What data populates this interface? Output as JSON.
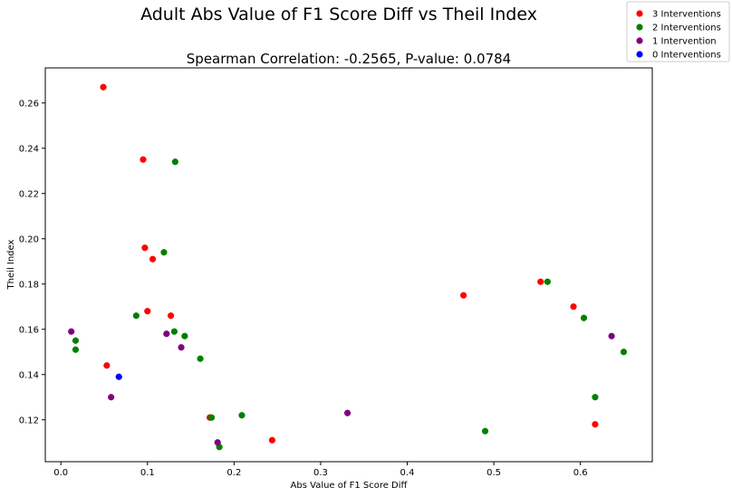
{
  "chart_data": {
    "type": "scatter",
    "title": "Adult Abs Value of F1 Score Diff vs Theil Index",
    "subtitle": "Spearman Correlation: -0.2565, P-value: 0.0784",
    "xlabel": "Abs Value of F1 Score Diff",
    "ylabel": "Theil Index",
    "xlim": [
      -0.018,
      0.683
    ],
    "ylim": [
      0.1015,
      0.2755
    ],
    "xticks": [
      0.0,
      0.1,
      0.2,
      0.3,
      0.4,
      0.5,
      0.6
    ],
    "xtick_labels": [
      "0.0",
      "0.1",
      "0.2",
      "0.3",
      "0.4",
      "0.5",
      "0.6"
    ],
    "yticks": [
      0.12,
      0.14,
      0.16,
      0.18,
      0.2,
      0.22,
      0.24,
      0.26
    ],
    "ytick_labels": [
      "0.12",
      "0.14",
      "0.16",
      "0.18",
      "0.20",
      "0.22",
      "0.24",
      "0.26"
    ],
    "grid": false,
    "legend_position": "top-right (outside plot)",
    "series": [
      {
        "name": "3 Interventions",
        "color": "#ff0000",
        "points": [
          [
            0.049,
            0.267
          ],
          [
            0.095,
            0.235
          ],
          [
            0.097,
            0.196
          ],
          [
            0.106,
            0.191
          ],
          [
            0.1,
            0.168
          ],
          [
            0.127,
            0.166
          ],
          [
            0.053,
            0.144
          ],
          [
            0.172,
            0.121
          ],
          [
            0.244,
            0.111
          ],
          [
            0.465,
            0.175
          ],
          [
            0.554,
            0.181
          ],
          [
            0.592,
            0.17
          ],
          [
            0.617,
            0.118
          ]
        ]
      },
      {
        "name": "2 Interventions",
        "color": "#008000",
        "points": [
          [
            0.132,
            0.234
          ],
          [
            0.119,
            0.194
          ],
          [
            0.087,
            0.166
          ],
          [
            0.017,
            0.155
          ],
          [
            0.017,
            0.151
          ],
          [
            0.131,
            0.159
          ],
          [
            0.143,
            0.157
          ],
          [
            0.161,
            0.147
          ],
          [
            0.174,
            0.121
          ],
          [
            0.209,
            0.122
          ],
          [
            0.183,
            0.108
          ],
          [
            0.49,
            0.115
          ],
          [
            0.562,
            0.181
          ],
          [
            0.604,
            0.165
          ],
          [
            0.617,
            0.13
          ],
          [
            0.65,
            0.15
          ]
        ]
      },
      {
        "name": "1 Intervention",
        "color": "#800080",
        "points": [
          [
            0.012,
            0.159
          ],
          [
            0.122,
            0.158
          ],
          [
            0.139,
            0.152
          ],
          [
            0.058,
            0.13
          ],
          [
            0.181,
            0.11
          ],
          [
            0.331,
            0.123
          ],
          [
            0.636,
            0.157
          ]
        ]
      },
      {
        "name": "0 Interventions",
        "color": "#0000ff",
        "points": [
          [
            0.067,
            0.139
          ]
        ]
      }
    ]
  }
}
